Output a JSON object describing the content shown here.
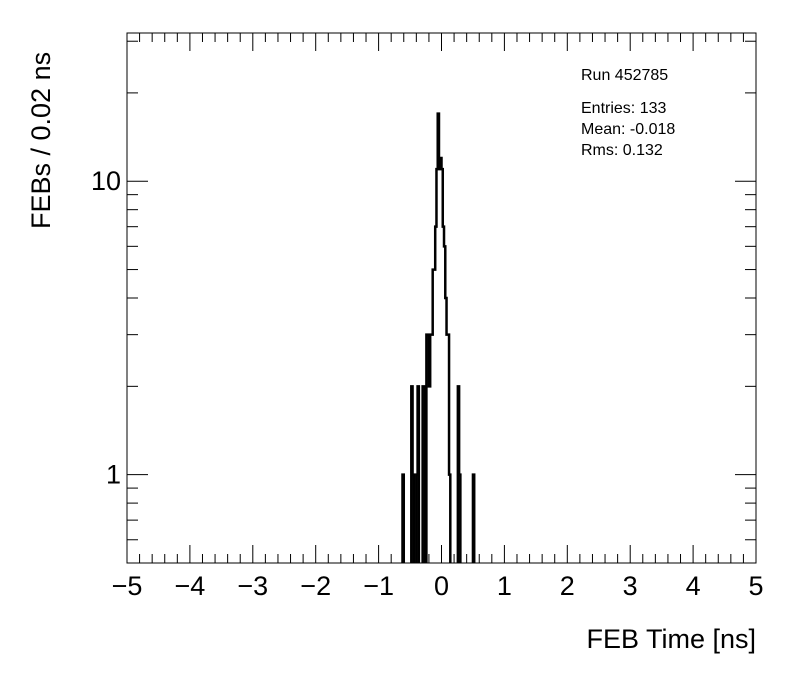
{
  "chart_data": {
    "type": "histogram",
    "xlabel": "FEB Time [ns]",
    "ylabel": "FEBs / 0.02 ns",
    "xlim": [
      -5,
      5
    ],
    "ylim": [
      0.5,
      32
    ],
    "yscale": "log",
    "bin_width": 0.02,
    "x_ticks": [
      "−5",
      "−4",
      "−3",
      "−2",
      "−1",
      "0",
      "1",
      "2",
      "3",
      "4",
      "5"
    ],
    "y_ticks": [
      "1",
      "10"
    ],
    "grid": false,
    "bins": [
      {
        "x": -0.61,
        "y": 1
      },
      {
        "x": -0.47,
        "y": 2
      },
      {
        "x": -0.45,
        "y": 1
      },
      {
        "x": -0.39,
        "y": 1
      },
      {
        "x": -0.37,
        "y": 2
      },
      {
        "x": -0.29,
        "y": 2
      },
      {
        "x": -0.27,
        "y": 2
      },
      {
        "x": -0.23,
        "y": 3
      },
      {
        "x": -0.21,
        "y": 3
      },
      {
        "x": -0.19,
        "y": 2
      },
      {
        "x": -0.17,
        "y": 3
      },
      {
        "x": -0.15,
        "y": 3
      },
      {
        "x": -0.13,
        "y": 5
      },
      {
        "x": -0.11,
        "y": 5
      },
      {
        "x": -0.09,
        "y": 7
      },
      {
        "x": -0.07,
        "y": 11
      },
      {
        "x": -0.05,
        "y": 17
      },
      {
        "x": -0.03,
        "y": 11
      },
      {
        "x": -0.01,
        "y": 12
      },
      {
        "x": 0.01,
        "y": 11
      },
      {
        "x": 0.03,
        "y": 7
      },
      {
        "x": 0.05,
        "y": 6
      },
      {
        "x": 0.07,
        "y": 4
      },
      {
        "x": 0.09,
        "y": 3
      },
      {
        "x": 0.11,
        "y": 3
      },
      {
        "x": 0.13,
        "y": 1
      },
      {
        "x": 0.27,
        "y": 2
      },
      {
        "x": 0.29,
        "y": 1
      },
      {
        "x": 0.51,
        "y": 1
      }
    ]
  },
  "stats": {
    "run": "Run 452785",
    "entries": "Entries: 133",
    "mean": "Mean: -0.018",
    "rms": "Rms: 0.132"
  }
}
